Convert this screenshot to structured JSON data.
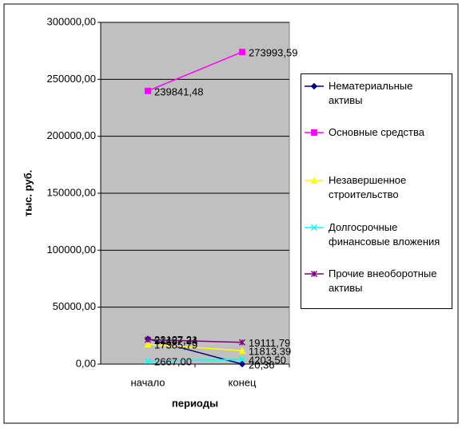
{
  "chart_data": {
    "type": "line",
    "x_label": "периоды",
    "y_label": "тыс. руб.",
    "categories": [
      "начало",
      "конец"
    ],
    "ylim": [
      0,
      300000
    ],
    "yticks": [
      {
        "value": 0,
        "label": "0,00"
      },
      {
        "value": 50000,
        "label": "50000,00"
      },
      {
        "value": 100000,
        "label": "100000,00"
      },
      {
        "value": 150000,
        "label": "150000,00"
      },
      {
        "value": 200000,
        "label": "200000,00"
      },
      {
        "value": 250000,
        "label": "250000,00"
      },
      {
        "value": 300000,
        "label": "300000,00"
      }
    ],
    "grid": true,
    "legend": "right",
    "series": [
      {
        "name": "Нематериальные активы",
        "color": "#000080",
        "marker": "diamond",
        "values": [
          22127.21,
          20.36
        ],
        "value_labels": [
          "22127,21",
          "20,36"
        ]
      },
      {
        "name": "Основные средства",
        "color": "#ff00ff",
        "marker": "square",
        "values": [
          239841.48,
          273993.59
        ],
        "value_labels": [
          "239841,48",
          "273993,59"
        ]
      },
      {
        "name": "Незавершенное строительство",
        "color": "#ffff00",
        "marker": "triangle",
        "values": [
          17385.79,
          11813.39
        ],
        "value_labels": [
          "17385,79",
          "11813,39"
        ]
      },
      {
        "name": "Долгосрочные финансовые вложения",
        "color": "#00ffff",
        "marker": "x",
        "values": [
          2667.0,
          4203.5
        ],
        "value_labels": [
          "2667,00",
          "4203,50"
        ]
      },
      {
        "name": "Прочие внеоборотные активы",
        "color": "#800080",
        "marker": "star",
        "values": [
          21487.24,
          19111.79
        ],
        "value_labels": [
          "21487,24",
          "19111,79"
        ]
      }
    ]
  }
}
